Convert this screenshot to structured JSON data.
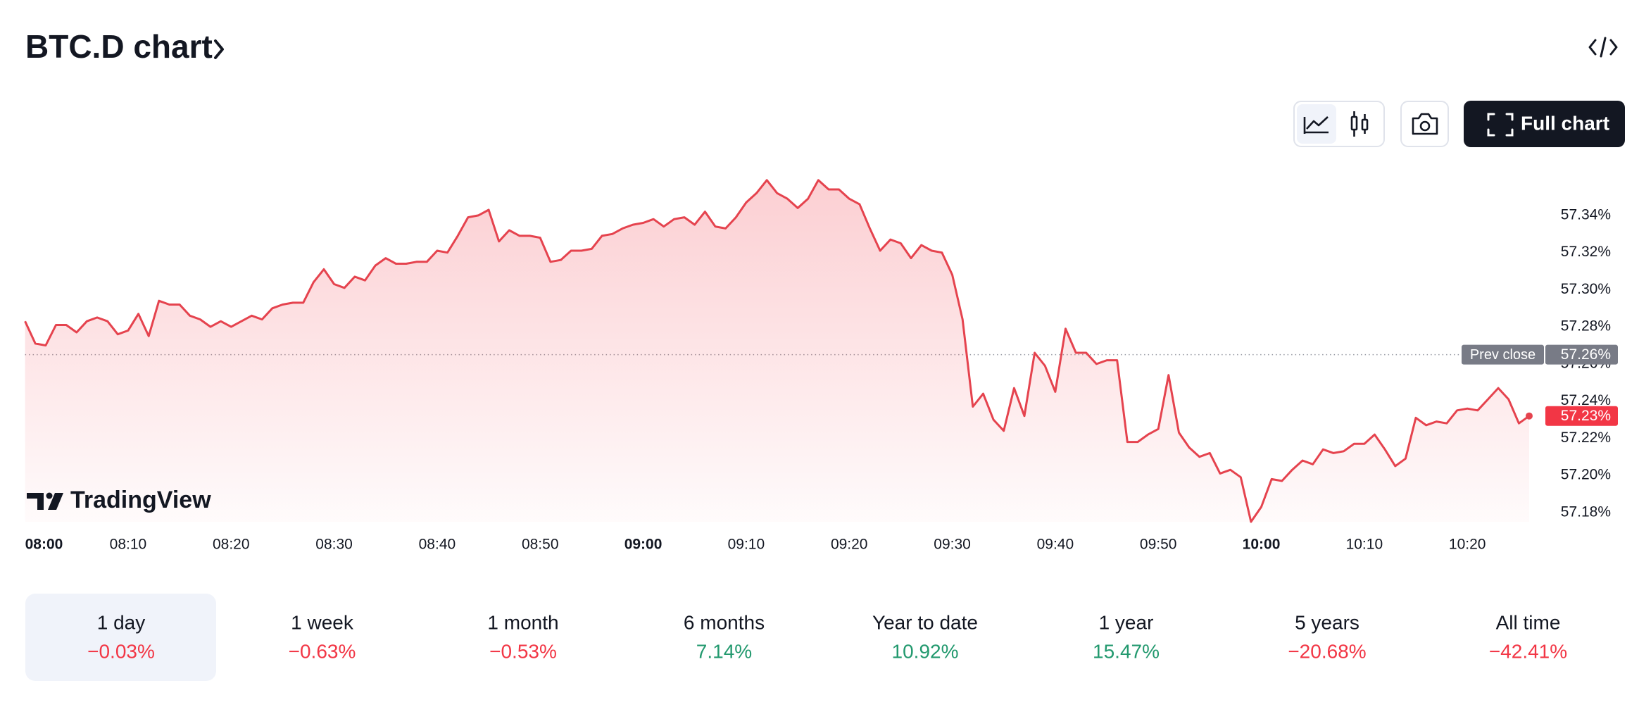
{
  "header": {
    "title": "BTC.D chart"
  },
  "toolbar": {
    "full_chart": "Full chart"
  },
  "logo": "TradingView",
  "chart_data": {
    "type": "area",
    "color": "#e5434e",
    "x": [
      "08:00",
      "08:01",
      "08:02",
      "08:03",
      "08:04",
      "08:05",
      "08:06",
      "08:07",
      "08:08",
      "08:09",
      "08:10",
      "08:11",
      "08:12",
      "08:13",
      "08:14",
      "08:15",
      "08:16",
      "08:17",
      "08:18",
      "08:19",
      "08:20",
      "08:21",
      "08:22",
      "08:23",
      "08:24",
      "08:25",
      "08:26",
      "08:27",
      "08:28",
      "08:29",
      "08:30",
      "08:31",
      "08:32",
      "08:33",
      "08:34",
      "08:35",
      "08:36",
      "08:37",
      "08:38",
      "08:39",
      "08:40",
      "08:41",
      "08:42",
      "08:43",
      "08:44",
      "08:45",
      "08:46",
      "08:47",
      "08:48",
      "08:49",
      "08:50",
      "08:51",
      "08:52",
      "08:53",
      "08:54",
      "08:55",
      "08:56",
      "08:57",
      "08:58",
      "08:59",
      "09:00",
      "09:01",
      "09:02",
      "09:03",
      "09:04",
      "09:05",
      "09:06",
      "09:07",
      "09:08",
      "09:09",
      "09:10",
      "09:11",
      "09:12",
      "09:13",
      "09:14",
      "09:15",
      "09:16",
      "09:17",
      "09:18",
      "09:19",
      "09:20",
      "09:21",
      "09:22",
      "09:23",
      "09:24",
      "09:25",
      "09:26",
      "09:27",
      "09:28",
      "09:29",
      "09:30",
      "09:31",
      "09:32",
      "09:33",
      "09:34",
      "09:35",
      "09:36",
      "09:37",
      "09:38",
      "09:39",
      "09:40",
      "09:41",
      "09:42",
      "09:43",
      "09:44",
      "09:45",
      "09:46",
      "09:47",
      "09:48",
      "09:49",
      "09:50",
      "09:51",
      "09:52",
      "09:53",
      "09:54",
      "09:55",
      "09:56",
      "09:57",
      "09:58",
      "09:59",
      "10:00",
      "10:01",
      "10:02",
      "10:03",
      "10:04",
      "10:05",
      "10:06",
      "10:07",
      "10:08",
      "10:09",
      "10:10",
      "10:11",
      "10:12",
      "10:13",
      "10:14",
      "10:15",
      "10:16",
      "10:17",
      "10:18",
      "10:19",
      "10:20",
      "10:21",
      "10:22",
      "10:23",
      "10:24",
      "10:25",
      "10:26"
    ],
    "values": [
      57.283,
      57.271,
      57.27,
      57.281,
      57.281,
      57.277,
      57.283,
      57.285,
      57.283,
      57.276,
      57.278,
      57.287,
      57.275,
      57.294,
      57.292,
      57.292,
      57.286,
      57.284,
      57.28,
      57.283,
      57.28,
      57.283,
      57.286,
      57.284,
      57.29,
      57.292,
      57.293,
      57.293,
      57.304,
      57.311,
      57.303,
      57.301,
      57.307,
      57.305,
      57.313,
      57.317,
      57.314,
      57.314,
      57.315,
      57.315,
      57.321,
      57.32,
      57.329,
      57.339,
      57.34,
      57.343,
      57.326,
      57.332,
      57.329,
      57.329,
      57.328,
      57.315,
      57.316,
      57.321,
      57.321,
      57.322,
      57.329,
      57.33,
      57.333,
      57.335,
      57.336,
      57.338,
      57.334,
      57.338,
      57.339,
      57.335,
      57.342,
      57.334,
      57.333,
      57.339,
      57.347,
      57.352,
      57.359,
      57.352,
      57.349,
      57.344,
      57.349,
      57.359,
      57.354,
      57.354,
      57.349,
      57.346,
      57.333,
      57.321,
      57.327,
      57.325,
      57.317,
      57.324,
      57.321,
      57.32,
      57.308,
      57.284,
      57.237,
      57.244,
      57.23,
      57.224,
      57.247,
      57.232,
      57.266,
      57.259,
      57.245,
      57.279,
      57.266,
      57.266,
      57.26,
      57.262,
      57.262,
      57.218,
      57.218,
      57.222,
      57.225,
      57.254,
      57.223,
      57.215,
      57.21,
      57.212,
      57.201,
      57.203,
      57.199,
      57.175,
      57.183,
      57.198,
      57.197,
      57.203,
      57.208,
      57.206,
      57.214,
      57.212,
      57.213,
      57.217,
      57.217,
      57.222,
      57.214,
      57.205,
      57.209,
      57.231,
      57.227,
      57.229,
      57.228,
      57.235,
      57.236,
      57.235,
      57.241,
      57.247,
      57.241,
      57.228,
      57.232
    ],
    "last_label": "57.23%",
    "prev_close": {
      "name": "Prev close",
      "value": 57.265,
      "label": "57.26%"
    },
    "xticks": [
      "08:00",
      "08:10",
      "08:20",
      "08:30",
      "08:40",
      "08:50",
      "09:00",
      "09:10",
      "09:20",
      "09:30",
      "09:40",
      "09:50",
      "10:00",
      "10:10",
      "10:20"
    ],
    "ylim": [
      57.175,
      57.365
    ],
    "yticks": [
      {
        "value": 57.18,
        "label": "57.18%"
      },
      {
        "value": 57.2,
        "label": "57.20%"
      },
      {
        "value": 57.22,
        "label": "57.22%"
      },
      {
        "value": 57.24,
        "label": "57.24%"
      },
      {
        "value": 57.26,
        "label": "57.26%"
      },
      {
        "value": 57.28,
        "label": "57.28%"
      },
      {
        "value": 57.3,
        "label": "57.30%"
      },
      {
        "value": 57.32,
        "label": "57.32%"
      },
      {
        "value": 57.34,
        "label": "57.34%"
      }
    ]
  },
  "periods": [
    {
      "label": "1 day",
      "change": "−0.03%"
    },
    {
      "label": "1 week",
      "change": "−0.63%"
    },
    {
      "label": "1 month",
      "change": "−0.53%"
    },
    {
      "label": "6 months",
      "change": "7.14%"
    },
    {
      "label": "Year to date",
      "change": "10.92%"
    },
    {
      "label": "1 year",
      "change": "15.47%"
    },
    {
      "label": "5 years",
      "change": "−20.68%"
    },
    {
      "label": "All time",
      "change": "−42.41%"
    }
  ]
}
